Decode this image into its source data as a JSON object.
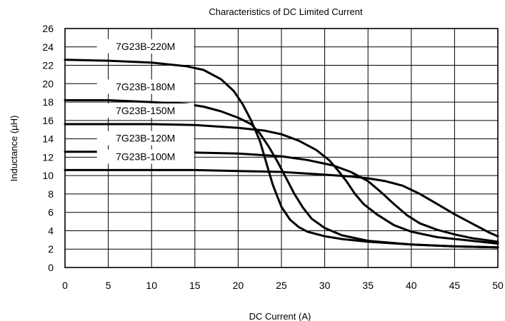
{
  "chart_data": {
    "type": "line",
    "title": "Characteristics of DC Limited  Current",
    "xlabel": "DC Current (A)",
    "ylabel": "Inductance (µH)",
    "xlim": [
      0,
      50
    ],
    "ylim": [
      0,
      26
    ],
    "x_ticks": [
      0,
      5,
      10,
      15,
      20,
      25,
      30,
      35,
      40,
      45,
      50
    ],
    "y_ticks": [
      0,
      2,
      4,
      6,
      8,
      10,
      12,
      14,
      16,
      18,
      20,
      22,
      24,
      26
    ],
    "grid": true,
    "legend": "none",
    "line_color": "#000000",
    "series": [
      {
        "name": "7G23B-220M",
        "points": [
          [
            0,
            22.6
          ],
          [
            5,
            22.5
          ],
          [
            10,
            22.3
          ],
          [
            14,
            21.9
          ],
          [
            16,
            21.5
          ],
          [
            18,
            20.5
          ],
          [
            19.5,
            19.2
          ],
          [
            20.5,
            17.8
          ],
          [
            21.5,
            16.0
          ],
          [
            22.5,
            13.8
          ],
          [
            23,
            12.2
          ],
          [
            23.5,
            10.6
          ],
          [
            24,
            9.0
          ],
          [
            25,
            6.6
          ],
          [
            26,
            5.2
          ],
          [
            27,
            4.4
          ],
          [
            28,
            3.9
          ],
          [
            30,
            3.4
          ],
          [
            32,
            3.1
          ],
          [
            35,
            2.8
          ],
          [
            40,
            2.5
          ],
          [
            45,
            2.3
          ],
          [
            50,
            2.2
          ]
        ]
      },
      {
        "name": "7G23B-180M",
        "points": [
          [
            0,
            18.2
          ],
          [
            5,
            18.2
          ],
          [
            10,
            18.0
          ],
          [
            14,
            17.8
          ],
          [
            16,
            17.5
          ],
          [
            18,
            17.0
          ],
          [
            20,
            16.3
          ],
          [
            21.5,
            15.6
          ],
          [
            22.5,
            14.6
          ],
          [
            23.5,
            13.2
          ],
          [
            24.5,
            11.6
          ],
          [
            25.5,
            9.8
          ],
          [
            26.5,
            8.0
          ],
          [
            27.5,
            6.5
          ],
          [
            28.5,
            5.3
          ],
          [
            30,
            4.3
          ],
          [
            32,
            3.5
          ],
          [
            35,
            2.9
          ],
          [
            40,
            2.5
          ],
          [
            45,
            2.3
          ],
          [
            50,
            2.2
          ]
        ]
      },
      {
        "name": "7G23B-150M",
        "points": [
          [
            0,
            15.6
          ],
          [
            5,
            15.6
          ],
          [
            10,
            15.6
          ],
          [
            15,
            15.5
          ],
          [
            20,
            15.2
          ],
          [
            23,
            14.9
          ],
          [
            25,
            14.5
          ],
          [
            27,
            13.8
          ],
          [
            29,
            12.8
          ],
          [
            30.5,
            11.7
          ],
          [
            31.5,
            10.6
          ],
          [
            32.5,
            9.4
          ],
          [
            33.5,
            8.0
          ],
          [
            34.5,
            6.9
          ],
          [
            36,
            5.8
          ],
          [
            38,
            4.6
          ],
          [
            40,
            3.9
          ],
          [
            43,
            3.3
          ],
          [
            46,
            3.0
          ],
          [
            50,
            2.6
          ]
        ]
      },
      {
        "name": "7G23B-120M",
        "points": [
          [
            0,
            12.6
          ],
          [
            5,
            12.6
          ],
          [
            10,
            12.5
          ],
          [
            15,
            12.5
          ],
          [
            20,
            12.4
          ],
          [
            25,
            12.1
          ],
          [
            28,
            11.7
          ],
          [
            31,
            11.1
          ],
          [
            33,
            10.4
          ],
          [
            35,
            9.4
          ],
          [
            36.5,
            8.2
          ],
          [
            38,
            6.9
          ],
          [
            39.5,
            5.7
          ],
          [
            41,
            4.8
          ],
          [
            43,
            4.1
          ],
          [
            45,
            3.6
          ],
          [
            47,
            3.2
          ],
          [
            50,
            2.8
          ]
        ]
      },
      {
        "name": "7G23B-100M",
        "points": [
          [
            0,
            10.6
          ],
          [
            5,
            10.6
          ],
          [
            10,
            10.6
          ],
          [
            15,
            10.6
          ],
          [
            20,
            10.5
          ],
          [
            25,
            10.4
          ],
          [
            30,
            10.1
          ],
          [
            33,
            9.9
          ],
          [
            35,
            9.7
          ],
          [
            37,
            9.4
          ],
          [
            39,
            8.9
          ],
          [
            41,
            8.0
          ],
          [
            43,
            6.9
          ],
          [
            45,
            5.8
          ],
          [
            47,
            4.8
          ],
          [
            49,
            3.8
          ],
          [
            50,
            3.4
          ]
        ]
      }
    ]
  }
}
